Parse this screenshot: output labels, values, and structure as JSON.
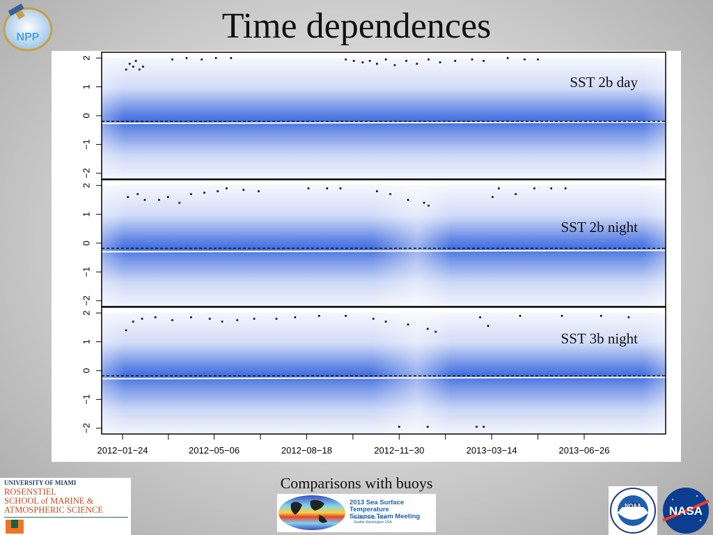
{
  "slide": {
    "title": "Time dependences",
    "caption": "Comparisons with buoys"
  },
  "logos": {
    "npp": "NPP",
    "university": "UNIVERSITY OF MIAMI",
    "school_lines": [
      "ROSENSTIEL",
      "SCHOOL of MARINE &",
      "ATMOSPHERIC SCIENCE"
    ],
    "meeting_title": [
      "2013 Sea Surface Temperature",
      "Science Team Meeting"
    ],
    "meeting_details": [
      "October 29-31, 2013",
      "Seattle Washington USA"
    ],
    "noaa": "NOAA",
    "nasa": "NASA"
  },
  "colors": {
    "density": "#2f5fdc",
    "dashed_line": "#111111",
    "median_line": "#ffffff"
  },
  "chart_data": {
    "type": "scatter",
    "x_tick_labels": [
      "2012-01-24",
      "2012-05-06",
      "2012-08-18",
      "2012-11-30",
      "2013-03-14",
      "2013-06-26"
    ],
    "ylim": [
      -2.2,
      2.2
    ],
    "y_ticks": [
      -2,
      -1,
      0,
      1,
      2
    ],
    "panels": [
      {
        "label": "SST 2b day",
        "dashed_y": -0.2,
        "median_y": -0.27,
        "outliers_x": [
          "2012-01-28",
          "2012-02-01",
          "2012-02-05",
          "2012-02-08",
          "2012-02-12",
          "2012-02-16",
          "2012-03-20",
          "2012-04-05",
          "2012-04-22",
          "2012-05-08",
          "2012-05-25",
          "2012-10-01",
          "2012-10-10",
          "2012-10-20",
          "2012-10-28",
          "2012-11-05",
          "2012-11-15",
          "2012-11-25",
          "2012-12-08",
          "2012-12-20",
          "2013-01-02",
          "2013-01-15",
          "2013-02-01",
          "2013-02-20",
          "2013-03-05",
          "2013-04-01",
          "2013-04-20",
          "2013-05-05"
        ],
        "outliers_y": [
          1.6,
          1.8,
          1.7,
          1.9,
          1.6,
          1.7,
          1.95,
          2.0,
          1.95,
          2.0,
          2.0,
          1.95,
          1.9,
          1.85,
          1.9,
          1.8,
          1.95,
          1.75,
          1.9,
          1.8,
          1.95,
          1.85,
          1.9,
          1.95,
          1.9,
          2.0,
          1.95,
          1.95
        ]
      },
      {
        "label": "SST 2b night",
        "dashed_y": -0.18,
        "median_y": -0.3,
        "outliers_x": [
          "2012-01-30",
          "2012-02-10",
          "2012-02-18",
          "2012-03-05",
          "2012-03-15",
          "2012-03-28",
          "2012-04-10",
          "2012-04-25",
          "2012-05-10",
          "2012-05-20",
          "2012-06-08",
          "2012-06-25",
          "2012-08-20",
          "2012-09-10",
          "2012-09-25",
          "2012-11-05",
          "2012-11-20",
          "2012-12-10",
          "2012-12-28",
          "2013-01-02",
          "2013-03-15",
          "2013-03-22",
          "2013-04-10",
          "2013-05-01",
          "2013-05-20",
          "2013-06-05"
        ],
        "outliers_y": [
          1.6,
          1.7,
          1.5,
          1.5,
          1.6,
          1.4,
          1.7,
          1.75,
          1.8,
          1.9,
          1.85,
          1.8,
          1.9,
          1.9,
          1.9,
          1.8,
          1.7,
          1.5,
          1.4,
          1.3,
          1.6,
          1.9,
          1.7,
          1.9,
          1.9,
          1.9
        ]
      },
      {
        "label": "SST 3b night",
        "dashed_y": -0.18,
        "median_y": -0.28,
        "outliers_x": [
          "2012-01-28",
          "2012-02-05",
          "2012-02-15",
          "2012-03-01",
          "2012-03-20",
          "2012-04-10",
          "2012-05-01",
          "2012-05-15",
          "2012-06-01",
          "2012-06-20",
          "2012-07-15",
          "2012-08-05",
          "2012-09-01",
          "2012-10-01",
          "2012-11-01",
          "2012-11-15",
          "2012-12-10",
          "2013-01-01",
          "2013-01-10",
          "2013-03-01",
          "2013-03-10",
          "2013-04-15",
          "2013-06-01",
          "2013-07-15",
          "2013-08-15",
          "2012-11-30",
          "2013-01-01",
          "2013-02-25",
          "2013-03-05"
        ],
        "outliers_y": [
          1.4,
          1.7,
          1.8,
          1.85,
          1.75,
          1.85,
          1.8,
          1.7,
          1.75,
          1.8,
          1.8,
          1.85,
          1.9,
          1.9,
          1.8,
          1.7,
          1.6,
          1.45,
          1.35,
          1.85,
          1.55,
          1.9,
          1.9,
          1.9,
          1.85,
          -1.95,
          -1.95,
          -1.95,
          -1.95
        ]
      }
    ]
  }
}
